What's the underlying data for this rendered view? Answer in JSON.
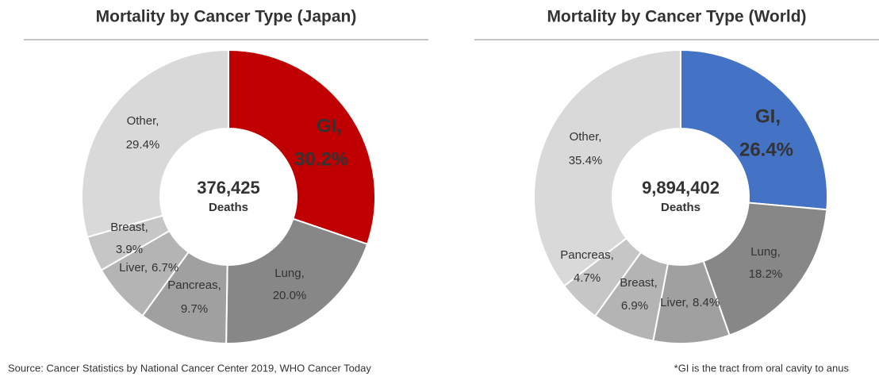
{
  "chart_data": [
    {
      "type": "pie",
      "title": "Mortality by Cancer Type (Japan)",
      "categories": [
        "GI,",
        "Lung,",
        "Pancreas,",
        "Liver,",
        "Breast,",
        "Other,"
      ],
      "values": [
        30.2,
        20.0,
        9.7,
        6.7,
        3.9,
        29.4
      ],
      "value_labels": [
        "30.2%",
        "20.0%",
        "9.7%",
        "6.7%",
        "3.9%",
        "29.4%"
      ],
      "colors": [
        "#c00000",
        "#878787",
        "#a0a0a0",
        "#b4b4b4",
        "#c6c6c6",
        "#d9d9d9"
      ],
      "total": {
        "value": 376425,
        "label": "376,425"
      },
      "total_caption": "Deaths"
    },
    {
      "type": "pie",
      "title": "Mortality by Cancer Type (World)",
      "categories": [
        "GI,",
        "Lung,",
        "Liver,",
        "Breast,",
        "Pancreas,",
        "Other,"
      ],
      "values": [
        26.4,
        18.2,
        8.4,
        6.9,
        4.7,
        35.4
      ],
      "value_labels": [
        "26.4%",
        "18.2%",
        "8.4%",
        "6.9%",
        "4.7%",
        "35.4%"
      ],
      "colors": [
        "#4472c4",
        "#878787",
        "#a0a0a0",
        "#b4b4b4",
        "#c6c6c6",
        "#d9d9d9"
      ],
      "total": {
        "value": 9894402,
        "label": "9,894,402"
      },
      "total_caption": "Deaths"
    }
  ],
  "source": "Source: Cancer Statistics by National Cancer Center 2019, WHO Cancer Today",
  "footnote": "*GI is the tract from oral cavity to anus"
}
